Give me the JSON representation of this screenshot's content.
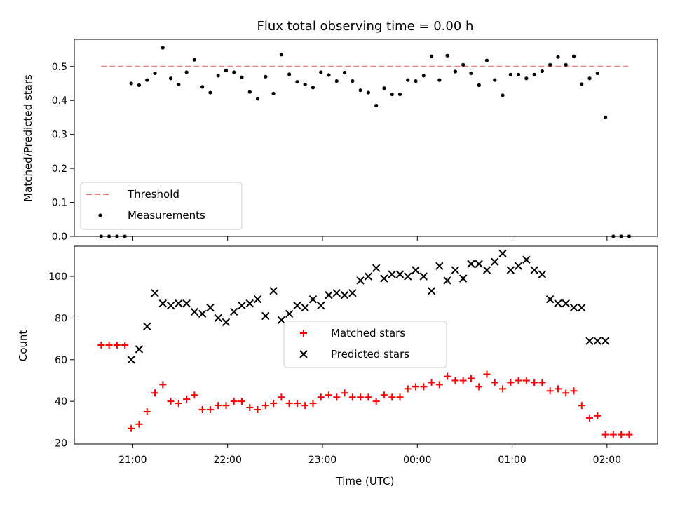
{
  "chart_data": [
    {
      "type": "scatter",
      "title": "Flux total observing time = 0.00 h",
      "xlabel": "",
      "ylabel": "Matched/Predicted stars",
      "xlim": [
        "20:23",
        "02:32"
      ],
      "ylim": [
        0,
        0.58
      ],
      "yticks": [
        0.0,
        0.1,
        0.2,
        0.3,
        0.4,
        0.5
      ],
      "xticks": [
        "21:00",
        "22:00",
        "23:00",
        "00:00",
        "01:00",
        "02:00"
      ],
      "show_xtick_labels": false,
      "legend": {
        "position": "lower-left",
        "entries": [
          "Threshold",
          "Measurements"
        ]
      },
      "threshold": {
        "name": "Threshold",
        "value": 0.5,
        "x_start": "20:40",
        "x_end": "02:15",
        "color": "#f08080",
        "style": "dashed"
      },
      "series": [
        {
          "name": "Measurements",
          "marker": "dot",
          "color": "#000000",
          "x": [
            "20:40",
            "20:45",
            "20:50",
            "20:55",
            "20:59",
            "21:04",
            "21:09",
            "21:14",
            "21:19",
            "21:24",
            "21:29",
            "21:34",
            "21:39",
            "21:44",
            "21:49",
            "21:54",
            "21:59",
            "22:04",
            "22:09",
            "22:14",
            "22:19",
            "22:24",
            "22:29",
            "22:34",
            "22:39",
            "22:44",
            "22:49",
            "22:54",
            "22:59",
            "23:04",
            "23:09",
            "23:14",
            "23:19",
            "23:24",
            "23:29",
            "23:34",
            "23:39",
            "23:44",
            "23:49",
            "23:54",
            "23:59",
            "00:04",
            "00:09",
            "00:14",
            "00:19",
            "00:24",
            "00:29",
            "00:34",
            "00:39",
            "00:44",
            "00:49",
            "00:54",
            "00:59",
            "01:04",
            "01:09",
            "01:14",
            "01:19",
            "01:24",
            "01:29",
            "01:34",
            "01:39",
            "01:44",
            "01:49",
            "01:54",
            "01:59",
            "02:04",
            "02:09",
            "02:14"
          ],
          "y": [
            0.0,
            0.0,
            0.0,
            0.0,
            0.45,
            0.445,
            0.46,
            0.48,
            0.555,
            0.465,
            0.447,
            0.483,
            0.52,
            0.44,
            0.423,
            0.473,
            0.488,
            0.483,
            0.468,
            0.425,
            0.405,
            0.47,
            0.42,
            0.535,
            0.477,
            0.455,
            0.447,
            0.438,
            0.483,
            0.475,
            0.457,
            0.482,
            0.457,
            0.43,
            0.423,
            0.385,
            0.436,
            0.418,
            0.418,
            0.46,
            0.457,
            0.473,
            0.53,
            0.46,
            0.532,
            0.485,
            0.505,
            0.48,
            0.445,
            0.518,
            0.46,
            0.415,
            0.476,
            0.476,
            0.465,
            0.476,
            0.486,
            0.505,
            0.528,
            0.505,
            0.53,
            0.448,
            0.465,
            0.48,
            0.35,
            0.0,
            0.0,
            0.0
          ]
        }
      ]
    },
    {
      "type": "scatter",
      "title": "",
      "xlabel": "Time (UTC)",
      "ylabel": "Count",
      "xlim": [
        "20:23",
        "02:32"
      ],
      "ylim": [
        19.5,
        114.5
      ],
      "yticks": [
        20,
        40,
        60,
        80,
        100
      ],
      "xticks": [
        "21:00",
        "22:00",
        "23:00",
        "00:00",
        "01:00",
        "02:00"
      ],
      "show_xtick_labels": true,
      "legend": {
        "position": "center",
        "entries": [
          "Matched stars",
          "Predicted stars"
        ]
      },
      "series": [
        {
          "name": "Matched stars",
          "marker": "plus",
          "color": "#ff0000",
          "x": [
            "20:40",
            "20:45",
            "20:50",
            "20:55",
            "20:59",
            "21:04",
            "21:09",
            "21:14",
            "21:19",
            "21:24",
            "21:29",
            "21:34",
            "21:39",
            "21:44",
            "21:49",
            "21:54",
            "21:59",
            "22:04",
            "22:09",
            "22:14",
            "22:19",
            "22:24",
            "22:29",
            "22:34",
            "22:39",
            "22:44",
            "22:49",
            "22:54",
            "22:59",
            "23:04",
            "23:09",
            "23:14",
            "23:19",
            "23:24",
            "23:29",
            "23:34",
            "23:39",
            "23:44",
            "23:49",
            "23:54",
            "23:59",
            "00:04",
            "00:09",
            "00:14",
            "00:19",
            "00:24",
            "00:29",
            "00:34",
            "00:39",
            "00:44",
            "00:49",
            "00:54",
            "00:59",
            "01:04",
            "01:09",
            "01:14",
            "01:19",
            "01:24",
            "01:29",
            "01:34",
            "01:39",
            "01:44",
            "01:49",
            "01:54",
            "01:59",
            "02:04",
            "02:09",
            "02:14"
          ],
          "y": [
            67,
            67,
            67,
            67,
            27,
            29,
            35,
            44,
            48,
            40,
            39,
            41,
            43,
            36,
            36,
            38,
            38,
            40,
            40,
            37,
            36,
            38,
            39,
            42,
            39,
            39,
            38,
            39,
            42,
            43,
            42,
            44,
            42,
            42,
            42,
            40,
            43,
            42,
            42,
            46,
            47,
            47,
            49,
            48,
            52,
            50,
            50,
            51,
            47,
            53,
            49,
            46,
            49,
            50,
            50,
            49,
            49,
            45,
            46,
            44,
            45,
            38,
            32,
            33,
            24,
            24,
            24,
            24
          ]
        },
        {
          "name": "Predicted stars",
          "marker": "x",
          "color": "#000000",
          "x": [
            "20:59",
            "21:04",
            "21:09",
            "21:14",
            "21:19",
            "21:24",
            "21:29",
            "21:34",
            "21:39",
            "21:44",
            "21:49",
            "21:54",
            "21:59",
            "22:04",
            "22:09",
            "22:14",
            "22:19",
            "22:24",
            "22:29",
            "22:34",
            "22:39",
            "22:44",
            "22:49",
            "22:54",
            "22:59",
            "23:04",
            "23:09",
            "23:14",
            "23:19",
            "23:24",
            "23:29",
            "23:34",
            "23:39",
            "23:44",
            "23:49",
            "23:54",
            "23:59",
            "00:04",
            "00:09",
            "00:14",
            "00:19",
            "00:24",
            "00:29",
            "00:34",
            "00:39",
            "00:44",
            "00:49",
            "00:54",
            "00:59",
            "01:04",
            "01:09",
            "01:14",
            "01:19",
            "01:24",
            "01:29",
            "01:34",
            "01:39",
            "01:44",
            "01:49",
            "01:54",
            "01:59"
          ],
          "y": [
            60,
            65,
            76,
            92,
            87,
            86,
            87,
            87,
            83,
            82,
            85,
            80,
            78,
            83,
            86,
            87,
            89,
            81,
            93,
            79,
            82,
            86,
            85,
            89,
            86,
            91,
            92,
            91,
            92,
            98,
            100,
            104,
            99,
            101,
            101,
            100,
            103,
            100,
            93,
            105,
            98,
            103,
            99,
            106,
            106,
            103,
            107,
            111,
            103,
            105,
            108,
            103,
            101,
            89,
            87,
            87,
            85,
            85,
            69,
            69,
            69
          ]
        }
      ]
    }
  ]
}
